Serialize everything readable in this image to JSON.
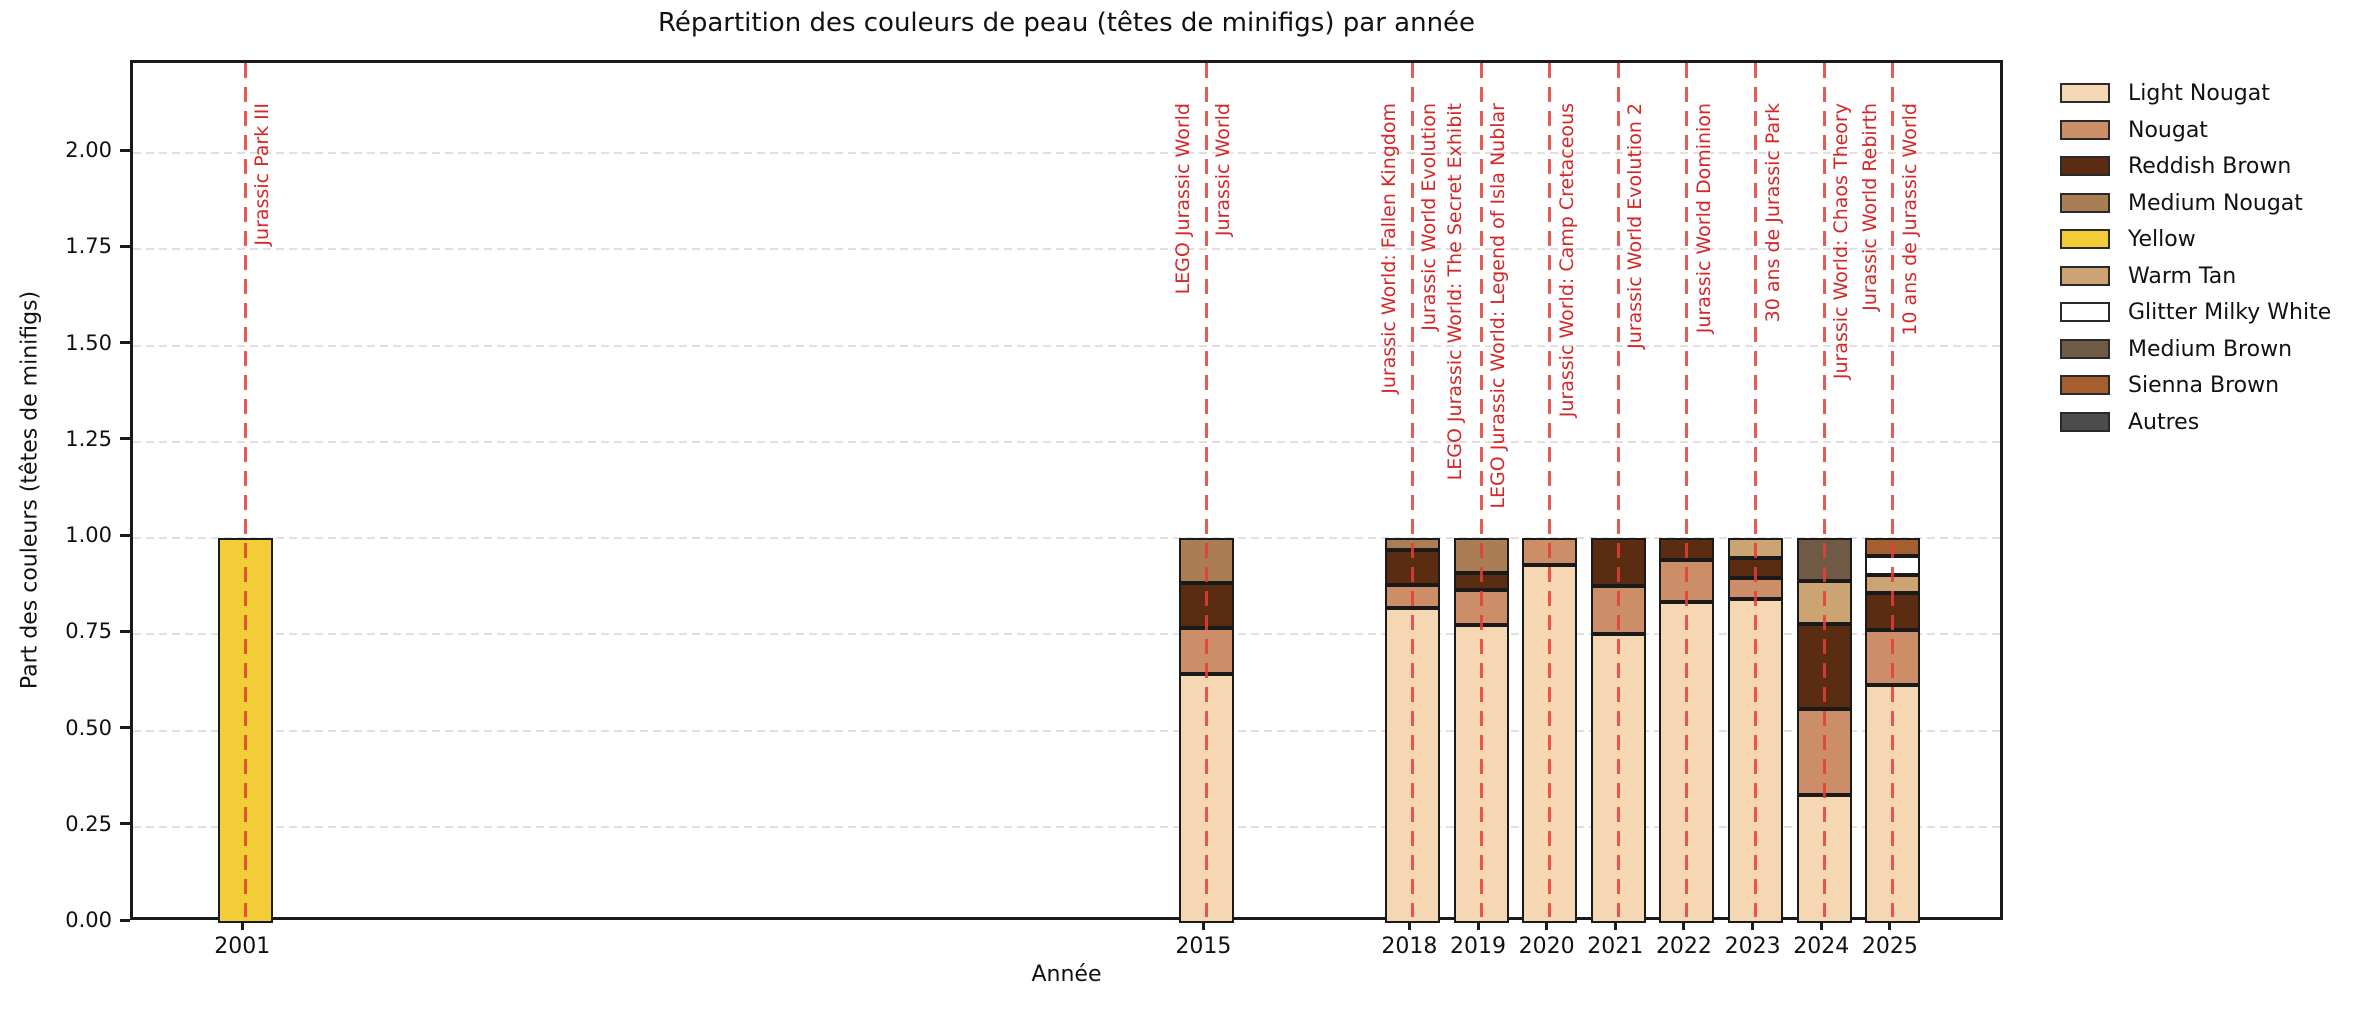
{
  "chart_data": {
    "type": "bar",
    "stacked": true,
    "title": "Répartition des couleurs de peau (têtes de minifigs) par année",
    "xlabel": "Année",
    "ylabel": "Part des couleurs (têtes de minifigs)",
    "categories": [
      2001,
      2015,
      2018,
      2019,
      2020,
      2021,
      2022,
      2023,
      2024,
      2025
    ],
    "ylim": [
      0,
      2.23
    ],
    "yticks": [
      "0.00",
      "0.25",
      "0.50",
      "0.75",
      "1.00",
      "1.25",
      "1.50",
      "1.75",
      "2.00"
    ],
    "grid": "horizontal-dashed",
    "legend_position": "upper-right-outside",
    "annotation_color": "#d62728",
    "series": [
      {
        "name": "Light Nougat",
        "color": "#F6D7B3",
        "values": [
          0,
          0.647,
          0.818,
          0.773,
          0.931,
          0.75,
          0.833,
          0.842,
          0.333,
          0.619
        ]
      },
      {
        "name": "Nougat",
        "color": "#CC8E69",
        "values": [
          0,
          0.118,
          0.061,
          0.091,
          0.069,
          0.125,
          0.111,
          0.053,
          0.222,
          0.143
        ]
      },
      {
        "name": "Reddish Brown",
        "color": "#5A2C12",
        "values": [
          0,
          0.118,
          0.091,
          0.045,
          0,
          0.125,
          0.056,
          0.053,
          0.222,
          0.095
        ]
      },
      {
        "name": "Medium Nougat",
        "color": "#AA7D55",
        "values": [
          0,
          0.118,
          0.03,
          0.091,
          0,
          0,
          0,
          0,
          0,
          0
        ]
      },
      {
        "name": "Yellow",
        "color": "#F2CD37",
        "values": [
          1.0,
          0,
          0,
          0,
          0,
          0,
          0,
          0,
          0,
          0
        ]
      },
      {
        "name": "Warm Tan",
        "color": "#CCA373",
        "values": [
          0,
          0,
          0,
          0,
          0,
          0,
          0,
          0.053,
          0.111,
          0.048
        ]
      },
      {
        "name": "Glitter Milky White",
        "color": "#FFFFFF",
        "values": [
          0,
          0,
          0,
          0,
          0,
          0,
          0,
          0,
          0,
          0.048
        ]
      },
      {
        "name": "Medium Brown",
        "color": "#6F5B45",
        "values": [
          0,
          0,
          0,
          0,
          0,
          0,
          0,
          0,
          0.111,
          0
        ]
      },
      {
        "name": "Sienna Brown",
        "color": "#A55E2F",
        "values": [
          0,
          0,
          0,
          0,
          0,
          0,
          0,
          0,
          0,
          0.048
        ]
      },
      {
        "name": "Autres",
        "color": "#4C4C4C",
        "values": [
          0,
          0,
          0,
          0,
          0,
          0,
          0,
          0,
          0,
          0
        ]
      }
    ],
    "annotations": [
      {
        "year": 2001,
        "labels": [
          "Jurassic Park III"
        ]
      },
      {
        "year": 2015,
        "labels": [
          "LEGO Jurassic World",
          "Jurassic World"
        ]
      },
      {
        "year": 2018,
        "labels": [
          "Jurassic World: Fallen Kingdom",
          "Jurassic World Evolution",
          "LEGO Jurassic World: The Secret Exhibit"
        ]
      },
      {
        "year": 2019,
        "labels": [
          "LEGO Jurassic World: Legend of Isla Nublar"
        ]
      },
      {
        "year": 2020,
        "labels": [
          "Jurassic World: Camp Cretaceous"
        ]
      },
      {
        "year": 2021,
        "labels": [
          "Jurassic World Evolution 2"
        ]
      },
      {
        "year": 2022,
        "labels": [
          "Jurassic World Dominion"
        ]
      },
      {
        "year": 2023,
        "labels": [
          "30 ans de Jurassic Park"
        ]
      },
      {
        "year": 2024,
        "labels": [
          "Jurassic World: Chaos Theory"
        ]
      },
      {
        "year": 2025,
        "labels": [
          "Jurassic World Rebirth",
          "10 ans de Jurassic World"
        ]
      }
    ]
  }
}
